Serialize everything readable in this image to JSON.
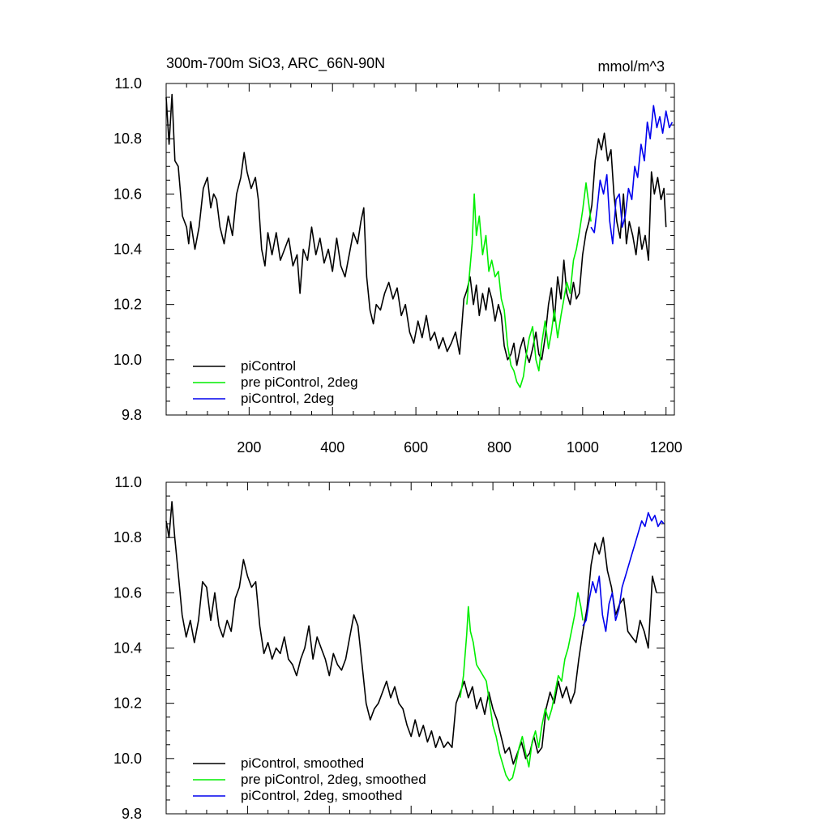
{
  "chart_data": [
    {
      "type": "line",
      "title": "300m-700m SiO3, ARC_66N-90N",
      "units": "mmol/m^3",
      "xlim": [
        1,
        1220
      ],
      "ylim": [
        9.8,
        11.0
      ],
      "x_ticks": [
        200,
        400,
        600,
        800,
        1000,
        1200
      ],
      "y_ticks": [
        "9.8",
        "10.0",
        "10.2",
        "10.4",
        "10.6",
        "10.8",
        "11.0"
      ],
      "grid": false,
      "legend_position": "bottom-left",
      "colors": {
        "piControl": "#000000",
        "pre piControl, 2deg": "#00ee00",
        "piControl, 2deg": "#0000ee"
      },
      "series": [
        {
          "name": "piControl",
          "color": "#000000",
          "x": [
            1,
            8,
            15,
            22,
            30,
            40,
            50,
            55,
            60,
            70,
            80,
            90,
            100,
            108,
            115,
            122,
            130,
            140,
            150,
            160,
            170,
            180,
            188,
            195,
            205,
            215,
            222,
            230,
            238,
            245,
            255,
            265,
            275,
            285,
            295,
            305,
            315,
            322,
            330,
            340,
            350,
            360,
            370,
            380,
            390,
            400,
            410,
            420,
            430,
            440,
            450,
            460,
            468,
            475,
            482,
            490,
            498,
            505,
            515,
            525,
            535,
            545,
            555,
            565,
            575,
            585,
            595,
            605,
            615,
            625,
            635,
            645,
            655,
            665,
            675,
            685,
            695,
            705,
            715,
            722,
            730,
            738,
            745,
            752,
            760,
            768,
            775,
            782,
            790,
            798,
            805,
            812,
            820,
            828,
            835,
            842,
            850,
            858,
            865,
            872,
            880,
            888,
            895,
            902,
            910,
            918,
            925,
            932,
            940,
            948,
            955,
            962,
            970,
            978,
            985,
            992,
            1000,
            1008,
            1015,
            1022,
            1030,
            1038,
            1045,
            1052,
            1060,
            1068,
            1075,
            1082,
            1090,
            1098,
            1105,
            1112,
            1120,
            1128,
            1135,
            1142,
            1150,
            1158,
            1165,
            1172,
            1180,
            1188,
            1195,
            1200
          ],
          "values": [
            10.95,
            10.78,
            10.96,
            10.72,
            10.7,
            10.52,
            10.48,
            10.42,
            10.5,
            10.4,
            10.48,
            10.62,
            10.66,
            10.55,
            10.6,
            10.58,
            10.48,
            10.42,
            10.52,
            10.45,
            10.6,
            10.66,
            10.75,
            10.68,
            10.62,
            10.66,
            10.58,
            10.4,
            10.34,
            10.46,
            10.38,
            10.46,
            10.36,
            10.4,
            10.44,
            10.34,
            10.38,
            10.24,
            10.4,
            10.36,
            10.48,
            10.38,
            10.44,
            10.35,
            10.4,
            10.32,
            10.44,
            10.34,
            10.3,
            10.38,
            10.46,
            10.42,
            10.5,
            10.55,
            10.3,
            10.18,
            10.13,
            10.2,
            10.18,
            10.24,
            10.28,
            10.22,
            10.26,
            10.16,
            10.2,
            10.1,
            10.06,
            10.14,
            10.08,
            10.16,
            10.07,
            10.1,
            10.04,
            10.08,
            10.03,
            10.06,
            10.1,
            10.02,
            10.22,
            10.25,
            10.3,
            10.2,
            10.27,
            10.16,
            10.24,
            10.18,
            10.26,
            10.22,
            10.14,
            10.2,
            10.16,
            10.05,
            10.0,
            10.02,
            10.06,
            9.98,
            10.04,
            10.08,
            10.02,
            9.99,
            10.04,
            10.1,
            10.02,
            10.0,
            10.08,
            10.2,
            10.26,
            10.14,
            10.3,
            10.22,
            10.36,
            10.24,
            10.2,
            10.28,
            10.22,
            10.24,
            10.38,
            10.46,
            10.5,
            10.56,
            10.72,
            10.8,
            10.76,
            10.82,
            10.72,
            10.76,
            10.6,
            10.5,
            10.44,
            10.6,
            10.42,
            10.5,
            10.45,
            10.38,
            10.48,
            10.4,
            10.45,
            10.36,
            10.68,
            10.6,
            10.66,
            10.58,
            10.62,
            10.48
          ]
        },
        {
          "name": "pre piControl, 2deg",
          "color": "#00ee00",
          "x": [
            722,
            728,
            735,
            740,
            745,
            752,
            760,
            768,
            775,
            782,
            790,
            798,
            805,
            812,
            820,
            828,
            835,
            842,
            850,
            858,
            865,
            872,
            880,
            888,
            895,
            902,
            910,
            918,
            925,
            932,
            940,
            948,
            955,
            962,
            970,
            978,
            985,
            992,
            1000,
            1008,
            1015,
            1020
          ],
          "values": [
            10.2,
            10.3,
            10.42,
            10.6,
            10.45,
            10.52,
            10.38,
            10.45,
            10.32,
            10.36,
            10.3,
            10.32,
            10.22,
            10.18,
            10.05,
            9.98,
            9.96,
            9.92,
            9.9,
            9.94,
            10.02,
            10.08,
            10.12,
            10.0,
            9.96,
            10.06,
            10.14,
            10.04,
            10.1,
            10.18,
            10.08,
            10.16,
            10.22,
            10.28,
            10.24,
            10.36,
            10.4,
            10.46,
            10.54,
            10.64,
            10.56,
            10.5
          ]
        },
        {
          "name": "piControl, 2deg",
          "color": "#0000ee",
          "x": [
            1020,
            1028,
            1035,
            1042,
            1050,
            1058,
            1065,
            1072,
            1080,
            1088,
            1095,
            1102,
            1110,
            1118,
            1125,
            1132,
            1140,
            1148,
            1155,
            1162,
            1170,
            1178,
            1185,
            1192,
            1200,
            1208,
            1215
          ],
          "values": [
            10.48,
            10.46,
            10.55,
            10.65,
            10.6,
            10.67,
            10.5,
            10.42,
            10.58,
            10.6,
            10.48,
            10.52,
            10.62,
            10.58,
            10.7,
            10.66,
            10.78,
            10.72,
            10.86,
            10.8,
            10.92,
            10.84,
            10.88,
            10.82,
            10.9,
            10.84,
            10.86
          ]
        }
      ]
    },
    {
      "type": "line",
      "title": "",
      "xlim": [
        1,
        1220
      ],
      "ylim": [
        9.8,
        11.0
      ],
      "y_ticks": [
        "9.8",
        "10.0",
        "10.2",
        "10.4",
        "10.6",
        "10.8",
        "11.0"
      ],
      "grid": false,
      "legend_position": "bottom-left",
      "colors": {
        "piControl, smoothed": "#000000",
        "pre piControl, 2deg, smoothed": "#00ee00",
        "piControl, 2deg, smoothed": "#0000ee"
      },
      "series": [
        {
          "name": "piControl, smoothed",
          "color": "#000000",
          "x": [
            1,
            8,
            15,
            22,
            30,
            40,
            50,
            60,
            70,
            80,
            90,
            100,
            110,
            120,
            130,
            140,
            150,
            160,
            170,
            180,
            190,
            200,
            210,
            220,
            230,
            240,
            250,
            260,
            270,
            280,
            290,
            300,
            310,
            320,
            330,
            340,
            350,
            360,
            370,
            380,
            390,
            400,
            410,
            420,
            430,
            440,
            450,
            460,
            470,
            480,
            490,
            500,
            510,
            520,
            530,
            540,
            550,
            560,
            570,
            580,
            590,
            600,
            610,
            620,
            630,
            640,
            650,
            660,
            670,
            680,
            690,
            700,
            710,
            720,
            730,
            740,
            750,
            760,
            770,
            780,
            790,
            800,
            810,
            820,
            830,
            840,
            850,
            860,
            870,
            880,
            890,
            900,
            910,
            920,
            930,
            940,
            950,
            960,
            970,
            980,
            990,
            1000,
            1010,
            1020,
            1030,
            1040,
            1050,
            1060,
            1070,
            1080,
            1090,
            1100,
            1110,
            1120,
            1130,
            1140,
            1150,
            1160,
            1170,
            1180,
            1190,
            1200
          ],
          "values": [
            10.86,
            10.8,
            10.93,
            10.8,
            10.68,
            10.52,
            10.44,
            10.5,
            10.42,
            10.5,
            10.64,
            10.62,
            10.5,
            10.6,
            10.48,
            10.44,
            10.5,
            10.46,
            10.58,
            10.62,
            10.72,
            10.66,
            10.62,
            10.64,
            10.48,
            10.38,
            10.42,
            10.36,
            10.4,
            10.38,
            10.44,
            10.36,
            10.34,
            10.3,
            10.36,
            10.4,
            10.48,
            10.36,
            10.44,
            10.4,
            10.36,
            10.3,
            10.38,
            10.34,
            10.32,
            10.36,
            10.44,
            10.52,
            10.48,
            10.34,
            10.2,
            10.14,
            10.18,
            10.2,
            10.24,
            10.28,
            10.22,
            10.26,
            10.2,
            10.18,
            10.12,
            10.08,
            10.14,
            10.08,
            10.12,
            10.06,
            10.1,
            10.04,
            10.08,
            10.04,
            10.06,
            10.04,
            10.2,
            10.24,
            10.28,
            10.22,
            10.26,
            10.18,
            10.22,
            10.16,
            10.24,
            10.18,
            10.14,
            10.08,
            10.02,
            10.04,
            9.98,
            10.02,
            10.06,
            10.0,
            10.02,
            10.08,
            10.02,
            10.04,
            10.18,
            10.24,
            10.2,
            10.28,
            10.22,
            10.26,
            10.2,
            10.24,
            10.36,
            10.46,
            10.54,
            10.7,
            10.78,
            10.74,
            10.8,
            10.68,
            10.62,
            10.52,
            10.56,
            10.58,
            10.46,
            10.44,
            10.42,
            10.5,
            10.46,
            10.4,
            10.66,
            10.6
          ]
        },
        {
          "name": "pre piControl, 2deg, smoothed",
          "color": "#00ee00",
          "x": [
            720,
            728,
            736,
            740,
            745,
            752,
            760,
            768,
            776,
            784,
            792,
            800,
            808,
            816,
            824,
            832,
            840,
            848,
            856,
            864,
            872,
            880,
            888,
            896,
            904,
            912,
            920,
            928,
            936,
            944,
            952,
            960,
            968,
            976,
            984,
            992,
            1000,
            1008,
            1015,
            1020
          ],
          "values": [
            10.22,
            10.3,
            10.45,
            10.55,
            10.46,
            10.42,
            10.34,
            10.32,
            10.3,
            10.28,
            10.2,
            10.12,
            10.08,
            10.02,
            9.98,
            9.94,
            9.92,
            9.93,
            9.98,
            10.04,
            10.08,
            10.02,
            9.97,
            10.06,
            10.1,
            10.04,
            10.12,
            10.18,
            10.14,
            10.18,
            10.24,
            10.3,
            10.28,
            10.36,
            10.4,
            10.46,
            10.52,
            10.6,
            10.55,
            10.5
          ]
        },
        {
          "name": "piControl, 2deg, smoothed",
          "color": "#0000ee",
          "x": [
            1020,
            1028,
            1036,
            1044,
            1052,
            1060,
            1068,
            1076,
            1084,
            1092,
            1100,
            1108,
            1116,
            1124,
            1132,
            1140,
            1148,
            1156,
            1164,
            1172,
            1180,
            1188,
            1196,
            1204,
            1212,
            1218
          ],
          "values": [
            10.48,
            10.5,
            10.58,
            10.64,
            10.6,
            10.66,
            10.52,
            10.46,
            10.56,
            10.6,
            10.5,
            10.54,
            10.62,
            10.66,
            10.7,
            10.74,
            10.78,
            10.82,
            10.86,
            10.84,
            10.89,
            10.86,
            10.88,
            10.84,
            10.86,
            10.85
          ]
        }
      ]
    }
  ]
}
